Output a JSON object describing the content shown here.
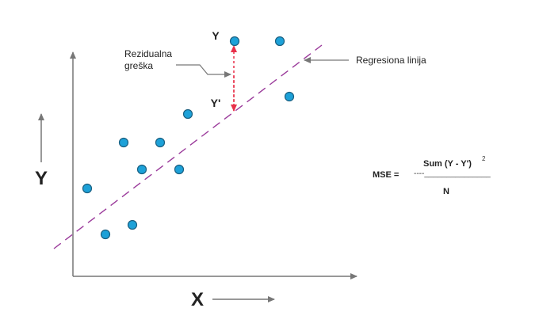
{
  "labels": {
    "y_axis": "Y",
    "x_axis": "X",
    "point_y": "Y",
    "point_y_prime": "Y'",
    "residual_line1": "Rezidualna",
    "residual_line2": "greška",
    "regression_line": "Regresiona linija"
  },
  "formula": {
    "lhs": "MSE =",
    "numerator": "Sum (Y - Y')",
    "exponent": "2",
    "fraction_bar": "----_______________",
    "denominator": "N"
  },
  "colors": {
    "point": "#1da1d8",
    "point_outline": "#1a5f80",
    "regression_line": "#9b3b9b",
    "residual_arrow": "#e8304a",
    "axis": "#777777"
  },
  "icons": [
    "up-arrow-icon",
    "right-arrow-icon",
    "pointer-arrow-icon"
  ]
}
